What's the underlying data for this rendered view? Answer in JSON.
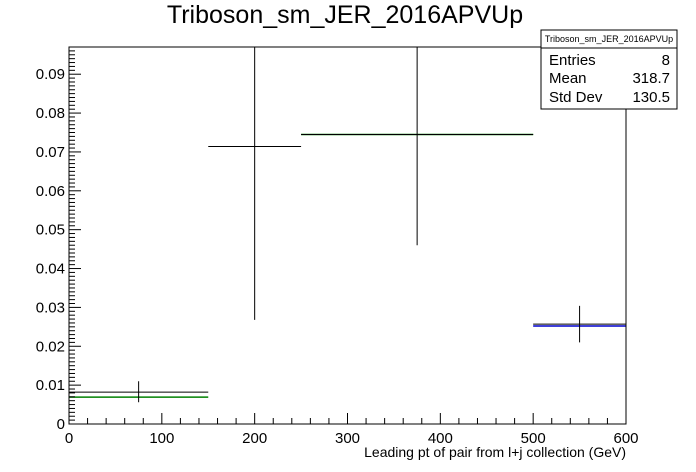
{
  "chart_data": {
    "type": "histogram",
    "title": "Triboson_sm_JER_2016APVUp",
    "xlabel": "Leading pt of pair from l+j collection (GeV)",
    "ylabel": "",
    "xlim": [
      0,
      600
    ],
    "ylim": [
      0,
      0.097
    ],
    "x_ticks": [
      0,
      100,
      200,
      300,
      400,
      500,
      600
    ],
    "y_ticks": [
      0,
      0.01,
      0.02,
      0.03,
      0.04,
      0.05,
      0.06,
      0.07,
      0.08,
      0.09
    ],
    "y_tick_labels": [
      "0",
      "0.01",
      "0.02",
      "0.03",
      "0.04",
      "0.05",
      "0.06",
      "0.07",
      "0.08",
      "0.09"
    ],
    "series": [
      {
        "color": "#000000",
        "style": "points-with-errors",
        "bins": [
          {
            "x_low": 0,
            "x_high": 150,
            "x_center": 75,
            "y": 0.0082,
            "y_err_low": 0.0026,
            "y_err_high": 0.0028
          },
          {
            "x_low": 150,
            "x_high": 250,
            "x_center": 200,
            "y": 0.0714,
            "y_err_low": 0.0446,
            "y_err_high": 0.0256
          },
          {
            "x_low": 250,
            "x_high": 500,
            "x_center": 375,
            "y": 0.0745,
            "y_err_low": 0.0285,
            "y_err_high": 0.0225
          },
          {
            "x_low": 500,
            "x_high": 600,
            "x_center": 550,
            "y": 0.0257,
            "y_err_low": 0.0047,
            "y_err_high": 0.0047
          }
        ]
      },
      {
        "color": "#008000",
        "style": "step",
        "bins": [
          {
            "x_low": 0,
            "x_high": 150,
            "y": 0.0069
          },
          {
            "x_low": 250,
            "x_high": 500,
            "y": 0.0745
          }
        ]
      },
      {
        "color": "#0000cc",
        "style": "step",
        "bins": [
          {
            "x_low": 500,
            "x_high": 600,
            "y": 0.0252
          }
        ]
      }
    ],
    "stats_box": {
      "title": "Triboson_sm_JER_2016APVUp",
      "rows": [
        {
          "label": "Entries",
          "value": "8"
        },
        {
          "label": "Mean",
          "value": "318.7"
        },
        {
          "label": "Std Dev",
          "value": "130.5"
        }
      ],
      "placement": "top-right"
    }
  }
}
